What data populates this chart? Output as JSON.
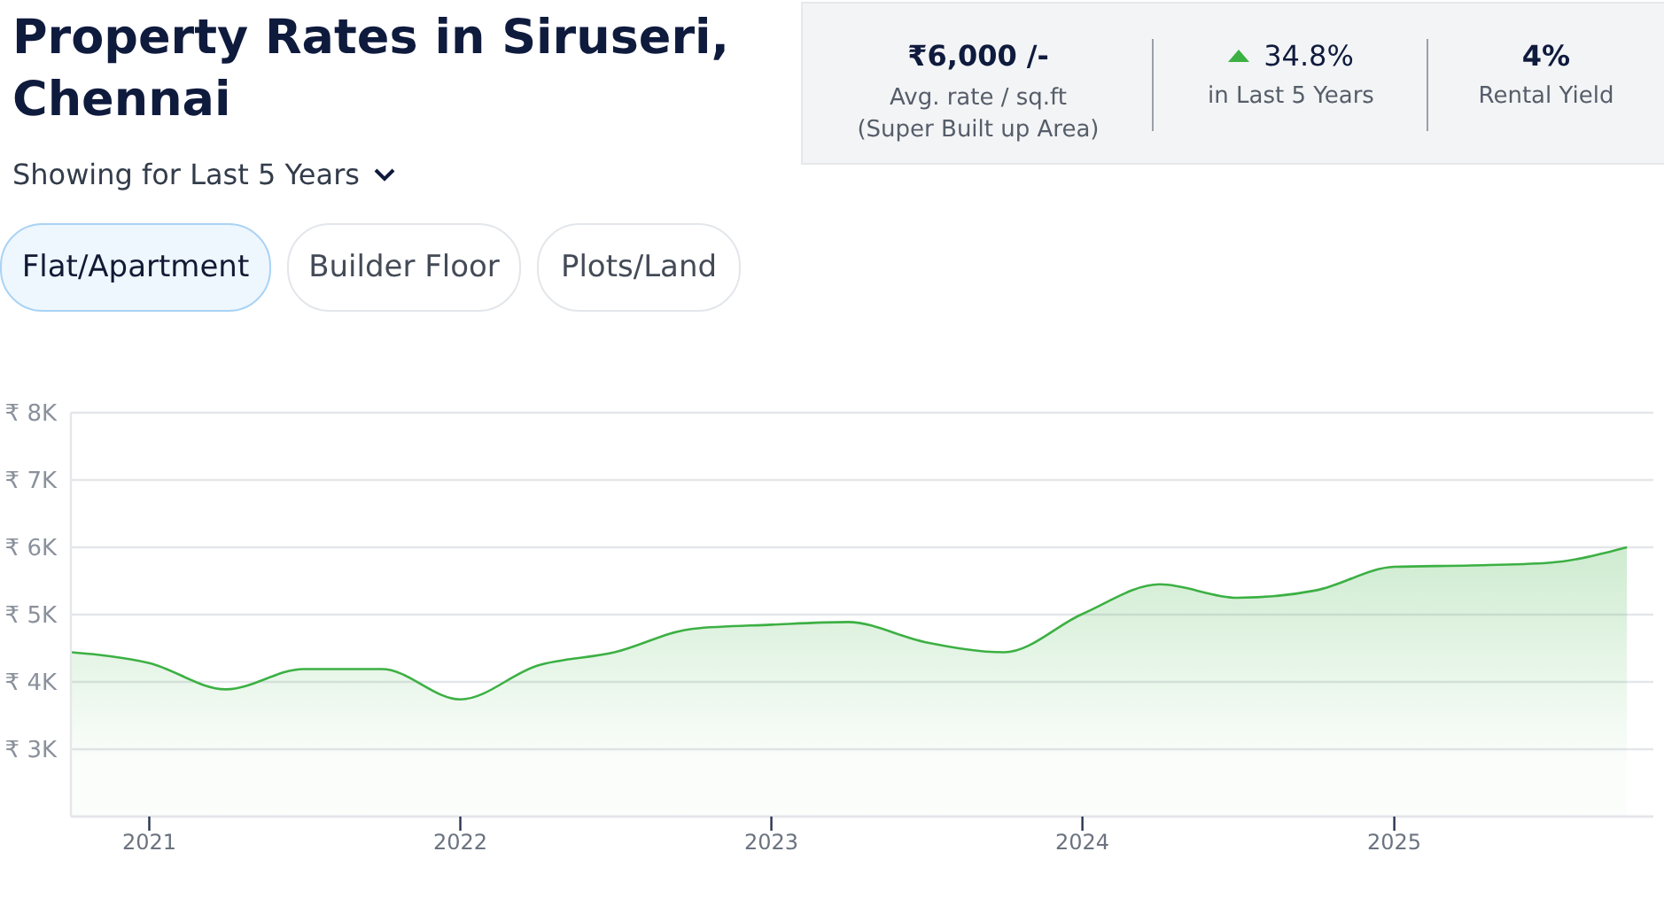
{
  "chart_data": {
    "type": "area",
    "title": "Property Rates in Siruseri, Chennai",
    "subtitle": "Showing for Last 5 Years",
    "annotations": [
      "₹6,000 /-",
      "Avg. rate / sq.ft",
      "(Super Built up Area)",
      "34.8%",
      "in Last 5 Years",
      "4%",
      "Rental Yield",
      "Flat/Apartment",
      "Builder Floor",
      "Plots/Land"
    ],
    "x": [
      "2020-10",
      "2021-01",
      "2021-04",
      "2021-07",
      "2021-10",
      "2022-01",
      "2022-04",
      "2022-07",
      "2022-10",
      "2023-01",
      "2023-04",
      "2023-07",
      "2023-10",
      "2024-01",
      "2024-04",
      "2024-07",
      "2024-10",
      "2025-01",
      "2025-04",
      "2025-07",
      "2025-10"
    ],
    "series": [
      {
        "color": "#3cb043",
        "values": [
          4440,
          4280,
          3890,
          4190,
          4190,
          3740,
          4240,
          4440,
          4790,
          4850,
          4890,
          4590,
          4440,
          5010,
          5450,
          5250,
          5360,
          5710,
          5730,
          5770,
          6000
        ]
      }
    ],
    "xlim": [
      "2020-10",
      "2025-11"
    ],
    "xticks": [
      {
        "value": "2021",
        "label": "2021"
      },
      {
        "value": "2022",
        "label": "2022"
      },
      {
        "value": "2023",
        "label": "2023"
      },
      {
        "value": "2024",
        "label": "2024"
      },
      {
        "value": "2025",
        "label": "2025"
      }
    ],
    "ylim": [
      2000,
      8000
    ],
    "yticks": [
      {
        "value": 3000,
        "label": "₹ 3K"
      },
      {
        "value": 4000,
        "label": "₹ 4K"
      },
      {
        "value": 5000,
        "label": "₹ 5K"
      },
      {
        "value": 6000,
        "label": "₹ 6K"
      },
      {
        "value": 7000,
        "label": "₹ 7K"
      },
      {
        "value": 8000,
        "label": "₹ 8K"
      }
    ],
    "grid": "y"
  }
}
